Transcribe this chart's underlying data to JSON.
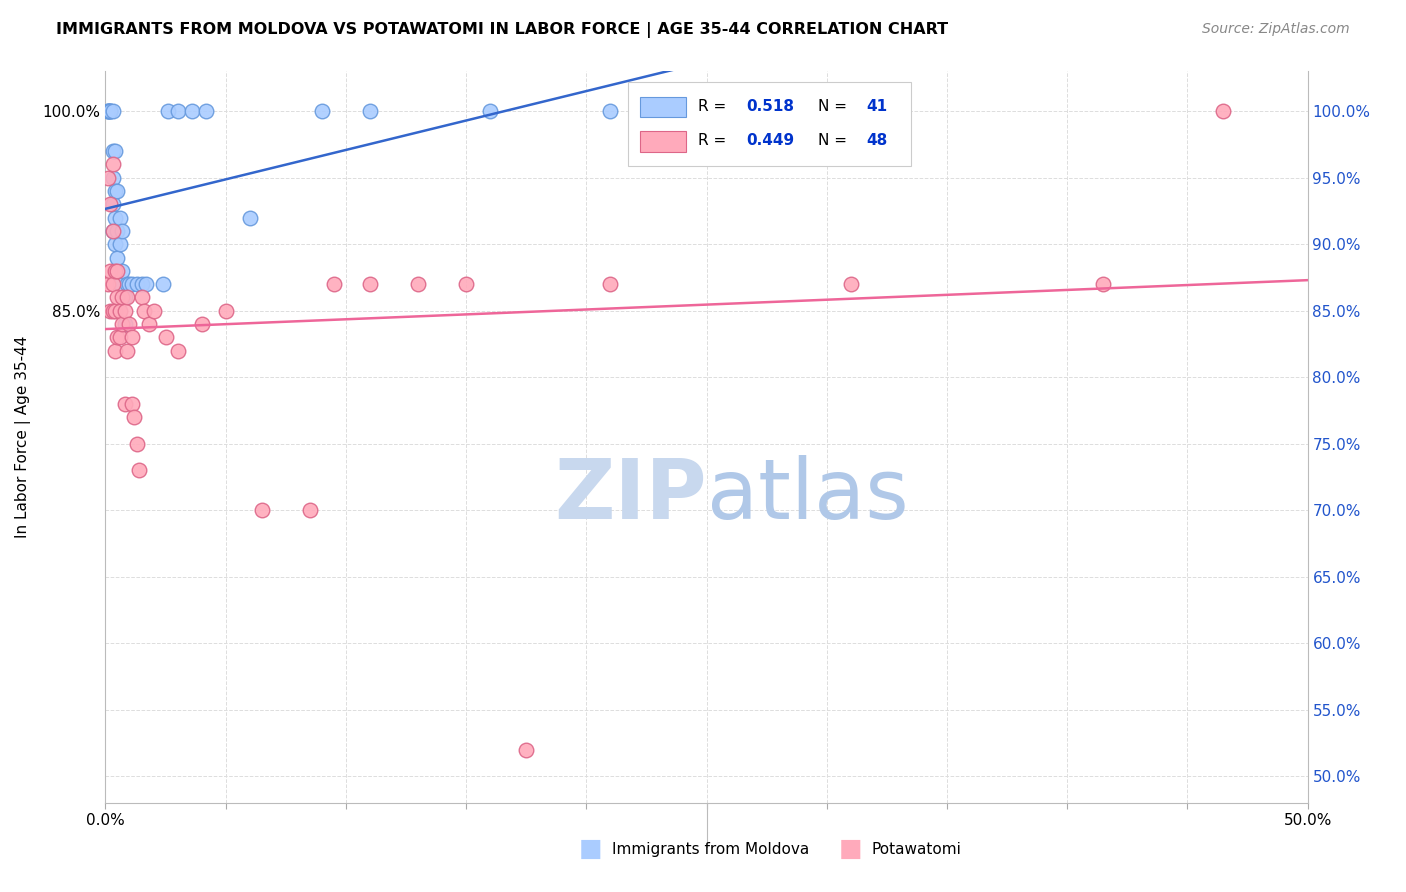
{
  "title": "IMMIGRANTS FROM MOLDOVA VS POTAWATOMI IN LABOR FORCE | AGE 35-44 CORRELATION CHART",
  "source": "Source: ZipAtlas.com",
  "ylabel": "In Labor Force | Age 35-44",
  "xlim": [
    0.0,
    0.5
  ],
  "ylim": [
    0.48,
    1.03
  ],
  "moldova_color": "#aaccff",
  "moldova_edge_color": "#6699dd",
  "moldova_line_color": "#3366cc",
  "potawatomi_color": "#ffaabb",
  "potawatomi_edge_color": "#dd6688",
  "potawatomi_line_color": "#ee6699",
  "legend_color": "#0033cc",
  "watermark_zip_color": "#c8d8ee",
  "watermark_atlas_color": "#b0c8e8",
  "moldova_x": [
    0.001,
    0.001,
    0.001,
    0.002,
    0.002,
    0.002,
    0.003,
    0.003,
    0.003,
    0.003,
    0.003,
    0.004,
    0.004,
    0.004,
    0.004,
    0.005,
    0.005,
    0.005,
    0.006,
    0.006,
    0.006,
    0.007,
    0.007,
    0.008,
    0.008,
    0.009,
    0.01,
    0.011,
    0.013,
    0.015,
    0.017,
    0.024,
    0.026,
    0.03,
    0.036,
    0.042,
    0.06,
    0.09,
    0.11,
    0.16,
    0.21
  ],
  "moldova_y": [
    1.0,
    1.0,
    1.0,
    1.0,
    1.0,
    1.0,
    1.0,
    0.97,
    0.95,
    0.93,
    0.91,
    0.97,
    0.94,
    0.92,
    0.9,
    0.94,
    0.91,
    0.89,
    0.92,
    0.9,
    0.87,
    0.91,
    0.88,
    0.86,
    0.84,
    0.87,
    0.87,
    0.87,
    0.87,
    0.87,
    0.87,
    0.87,
    1.0,
    1.0,
    1.0,
    1.0,
    0.92,
    1.0,
    1.0,
    1.0,
    1.0
  ],
  "potawatomi_x": [
    0.001,
    0.001,
    0.002,
    0.002,
    0.002,
    0.003,
    0.003,
    0.003,
    0.003,
    0.004,
    0.004,
    0.004,
    0.005,
    0.005,
    0.005,
    0.006,
    0.006,
    0.007,
    0.007,
    0.008,
    0.008,
    0.009,
    0.009,
    0.01,
    0.011,
    0.011,
    0.012,
    0.013,
    0.014,
    0.015,
    0.016,
    0.018,
    0.02,
    0.025,
    0.03,
    0.04,
    0.05,
    0.065,
    0.085,
    0.095,
    0.11,
    0.13,
    0.15,
    0.175,
    0.21,
    0.31,
    0.415,
    0.465
  ],
  "potawatomi_y": [
    0.95,
    0.87,
    0.93,
    0.88,
    0.85,
    0.96,
    0.91,
    0.87,
    0.85,
    0.88,
    0.85,
    0.82,
    0.88,
    0.86,
    0.83,
    0.85,
    0.83,
    0.86,
    0.84,
    0.85,
    0.78,
    0.86,
    0.82,
    0.84,
    0.83,
    0.78,
    0.77,
    0.75,
    0.73,
    0.86,
    0.85,
    0.84,
    0.85,
    0.83,
    0.82,
    0.84,
    0.85,
    0.7,
    0.7,
    0.87,
    0.87,
    0.87,
    0.87,
    0.52,
    0.87,
    0.87,
    0.87,
    1.0
  ]
}
